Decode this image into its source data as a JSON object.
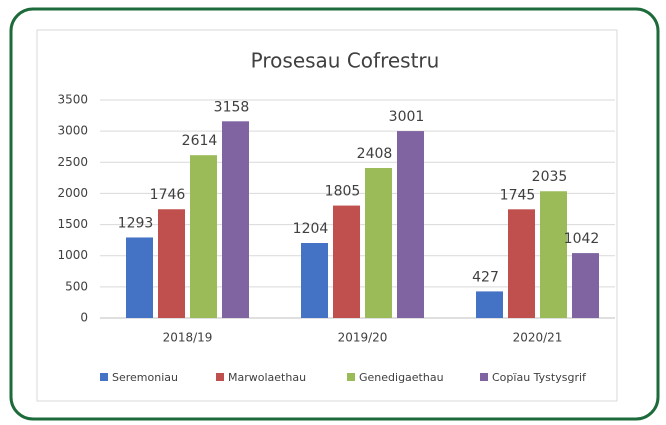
{
  "chart_data": {
    "type": "bar",
    "title": "Prosesau Cofrestru",
    "categories": [
      "2018/19",
      "2019/20",
      "2020/21"
    ],
    "series": [
      {
        "name": "Seremoniau",
        "color": "#4472c4",
        "values": [
          1293,
          1204,
          427
        ]
      },
      {
        "name": "Marwolaethau",
        "color": "#c0504d",
        "values": [
          1746,
          1805,
          1745
        ]
      },
      {
        "name": "Genedigaethau",
        "color": "#9bbb59",
        "values": [
          2614,
          2408,
          2035
        ]
      },
      {
        "name": "Copïau Tystysgrif",
        "color": "#8064a2",
        "values": [
          3158,
          3001,
          1042
        ]
      }
    ],
    "ylim": [
      0,
      3500
    ],
    "yticks": [
      0,
      500,
      1000,
      1500,
      2000,
      2500,
      3000,
      3500
    ],
    "grid": true,
    "legend": "bottom"
  }
}
